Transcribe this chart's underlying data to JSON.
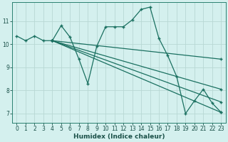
{
  "xlabel": "Humidex (Indice chaleur)",
  "bg_color": "#d4f0ee",
  "grid_color": "#b8d8d4",
  "line_color": "#1a7060",
  "xlim": [
    -0.5,
    23.5
  ],
  "ylim": [
    6.6,
    11.8
  ],
  "xticks": [
    0,
    1,
    2,
    3,
    4,
    5,
    6,
    7,
    8,
    9,
    10,
    11,
    12,
    13,
    14,
    15,
    16,
    17,
    18,
    19,
    20,
    21,
    22,
    23
  ],
  "yticks": [
    7,
    8,
    9,
    10,
    11
  ],
  "series1_x": [
    0,
    1,
    2,
    3,
    4,
    5,
    6,
    7,
    8,
    9,
    10,
    11,
    12,
    13,
    14,
    15,
    16,
    17,
    18,
    19,
    20,
    21,
    22,
    23
  ],
  "series1_y": [
    10.35,
    10.15,
    10.35,
    10.15,
    10.15,
    10.8,
    10.3,
    9.35,
    8.3,
    9.9,
    10.75,
    10.75,
    10.75,
    11.05,
    11.5,
    11.6,
    10.25,
    9.5,
    8.6,
    7.0,
    7.55,
    8.05,
    7.45,
    7.05
  ],
  "line2_x": [
    4,
    23
  ],
  "line2_y": [
    10.15,
    7.05
  ],
  "line3_x": [
    4,
    23
  ],
  "line3_y": [
    10.15,
    7.5
  ],
  "line4_x": [
    4,
    23
  ],
  "line4_y": [
    10.15,
    8.05
  ],
  "line5_x": [
    4,
    23
  ],
  "line5_y": [
    10.15,
    9.35
  ]
}
